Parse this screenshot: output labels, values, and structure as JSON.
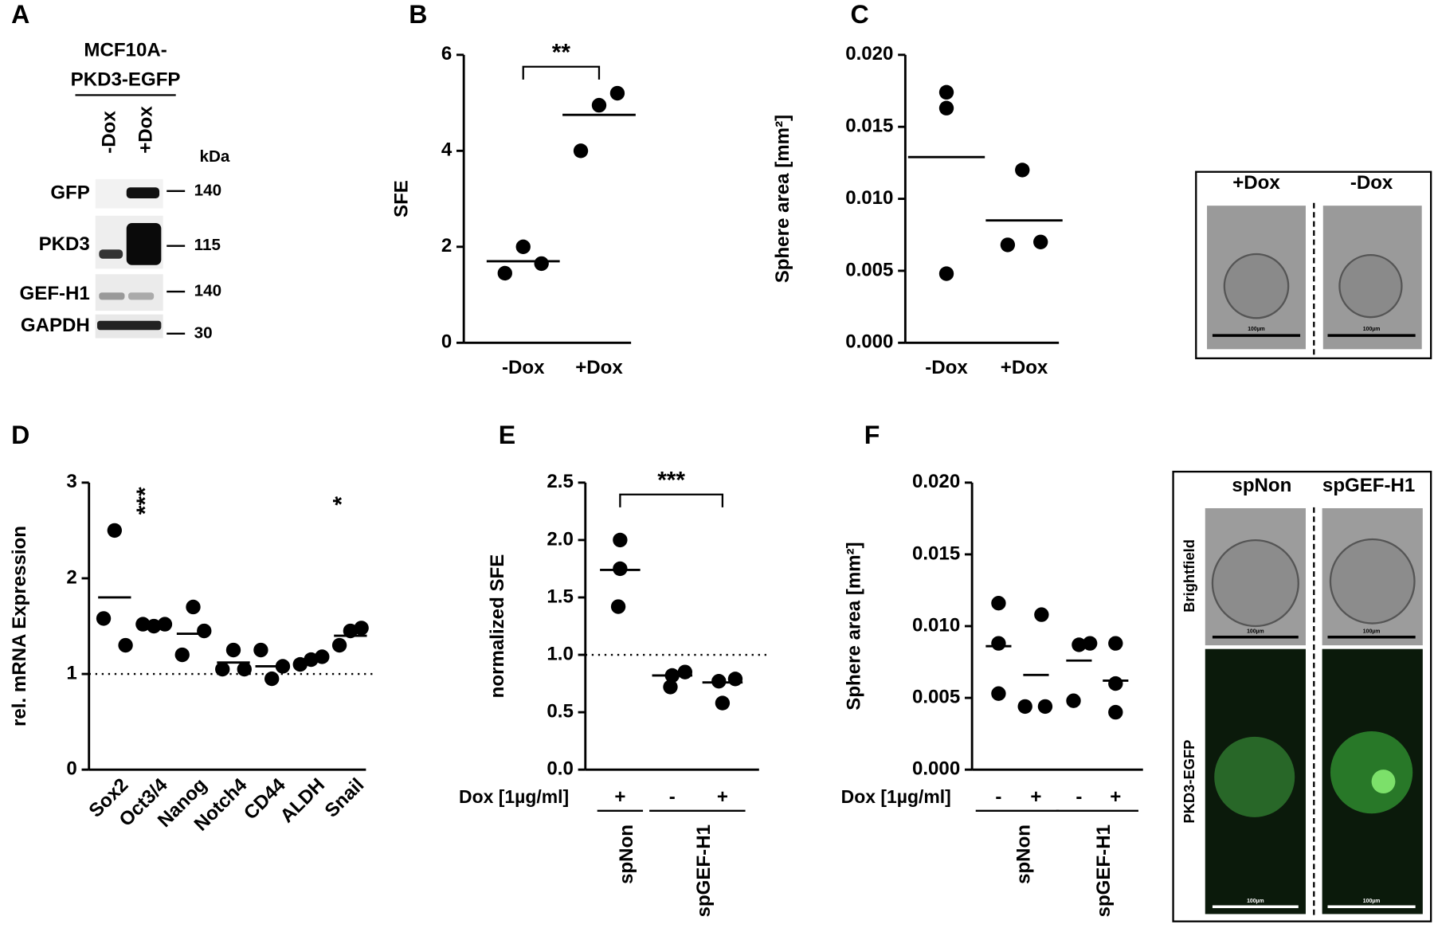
{
  "chart_data": [
    {
      "type": "dot",
      "label": "B",
      "ylabel": "SFE",
      "color": "#000000",
      "categories": [
        "-Dox",
        "+Dox"
      ],
      "values": [
        [
          1.45,
          2.0,
          1.65
        ],
        [
          4.0,
          4.95,
          5.2
        ]
      ],
      "means": [
        1.7,
        4.75
      ],
      "ylim": [
        0,
        6
      ],
      "yticks": [
        0,
        2,
        4,
        6
      ],
      "significance": {
        "text": "**",
        "from": 0,
        "to": 1
      }
    },
    {
      "type": "dot",
      "label": "C",
      "ylabel": "Sphere area [mm²]",
      "color": "#000000",
      "categories": [
        "-Dox",
        "+Dox"
      ],
      "values": [
        [
          0.0163,
          0.0174,
          0.0048
        ],
        [
          0.0068,
          0.012,
          0.007
        ]
      ],
      "means": [
        0.0129,
        0.0085
      ],
      "ylim": [
        0,
        0.02
      ],
      "yticks": [
        {
          "value": 0,
          "label": "0.000"
        },
        {
          "value": 0.005,
          "label": "0.005"
        },
        {
          "value": 0.01,
          "label": "0.010"
        },
        {
          "value": 0.015,
          "label": "0.015"
        },
        {
          "value": 0.02,
          "label": "0.020"
        }
      ]
    },
    {
      "type": "dot",
      "label": "D",
      "ylabel": "rel. mRNA Expression",
      "color": "#000000",
      "categories": [
        "Sox2",
        "Oct3/4",
        "Nanog",
        "Notch4",
        "CD44",
        "ALDH",
        "Snail"
      ],
      "values": [
        [
          1.58,
          2.5,
          1.3
        ],
        [
          1.52,
          1.5,
          1.52
        ],
        [
          1.2,
          1.7,
          1.45
        ],
        [
          1.05,
          1.25,
          1.05
        ],
        [
          1.25,
          0.95,
          1.08
        ],
        [
          1.1,
          1.15,
          1.18
        ],
        [
          1.3,
          1.45,
          1.48
        ]
      ],
      "means": [
        1.8,
        1.5,
        1.42,
        1.12,
        1.08,
        1.14,
        1.4
      ],
      "ylim": [
        0,
        3
      ],
      "yticks": [
        0,
        1,
        2,
        3
      ],
      "refline": 1,
      "annotations": [
        {
          "text": "***",
          "category": 1
        },
        {
          "text": "*",
          "category": 6
        }
      ]
    },
    {
      "type": "dot",
      "label": "E",
      "ylabel": "normalized SFE",
      "color": "#000000",
      "dox_label": "Dox [1µg/ml]",
      "categories": [
        "+",
        "-",
        "+"
      ],
      "groups": [
        {
          "name": "spNon",
          "size": 1
        },
        {
          "name": "spGEF-H1",
          "size": 2
        }
      ],
      "values": [
        [
          1.42,
          2.0,
          1.75
        ],
        [
          0.72,
          0.85,
          0.82
        ],
        [
          0.77,
          0.58,
          0.79
        ]
      ],
      "means": [
        1.74,
        0.82,
        0.76
      ],
      "ylim": [
        0,
        2.5
      ],
      "yticks": [
        {
          "value": 0,
          "label": "0.0"
        },
        0.5,
        {
          "value": 1,
          "label": "1.0"
        },
        1.5,
        {
          "value": 2,
          "label": "2.0"
        },
        2.5
      ],
      "refline": 1,
      "significance": {
        "text": "***",
        "from": 0,
        "to": 2
      }
    },
    {
      "type": "dot",
      "label": "F",
      "ylabel": "Sphere area [mm²]",
      "color": "#000000",
      "dox_label": "Dox [1µg/ml]",
      "categories": [
        "-",
        "+",
        "-",
        "+"
      ],
      "groups": [
        {
          "name": "spNon",
          "size": 2
        },
        {
          "name": "spGEF-H1",
          "size": 2
        }
      ],
      "values": [
        [
          0.0053,
          0.0116,
          0.0088
        ],
        [
          0.0044,
          0.0108,
          0.0044
        ],
        [
          0.0048,
          0.0087,
          0.0088
        ],
        [
          0.004,
          0.006,
          0.0088
        ]
      ],
      "means": [
        0.0086,
        0.0066,
        0.0076,
        0.0062
      ],
      "ylim": [
        0,
        0.02
      ],
      "yticks": [
        {
          "value": 0,
          "label": "0.000"
        },
        {
          "value": 0.005,
          "label": "0.005"
        },
        {
          "value": 0.01,
          "label": "0.010"
        },
        {
          "value": 0.015,
          "label": "0.015"
        },
        {
          "value": 0.02,
          "label": "0.020"
        }
      ]
    }
  ],
  "blot": {
    "label": "A",
    "title": [
      "MCF10A-",
      "PKD3-EGFP"
    ],
    "lanes": [
      "-Dox",
      "+Dox"
    ],
    "unit": "kDa",
    "rows": [
      {
        "name": "GFP",
        "marker": 140
      },
      {
        "name": "PKD3",
        "marker": 115
      },
      {
        "name": "GEF-H1",
        "marker": 140
      },
      {
        "name": "GAPDH",
        "marker": 30
      }
    ]
  },
  "images": {
    "top": {
      "columns": [
        "+Dox",
        "-Dox"
      ]
    },
    "bottom": {
      "columns": [
        "spNon",
        "spGEF-H1"
      ],
      "rows": [
        "Brightfield",
        "PKD3-EGFP"
      ]
    },
    "scale_bar": "100µm"
  }
}
